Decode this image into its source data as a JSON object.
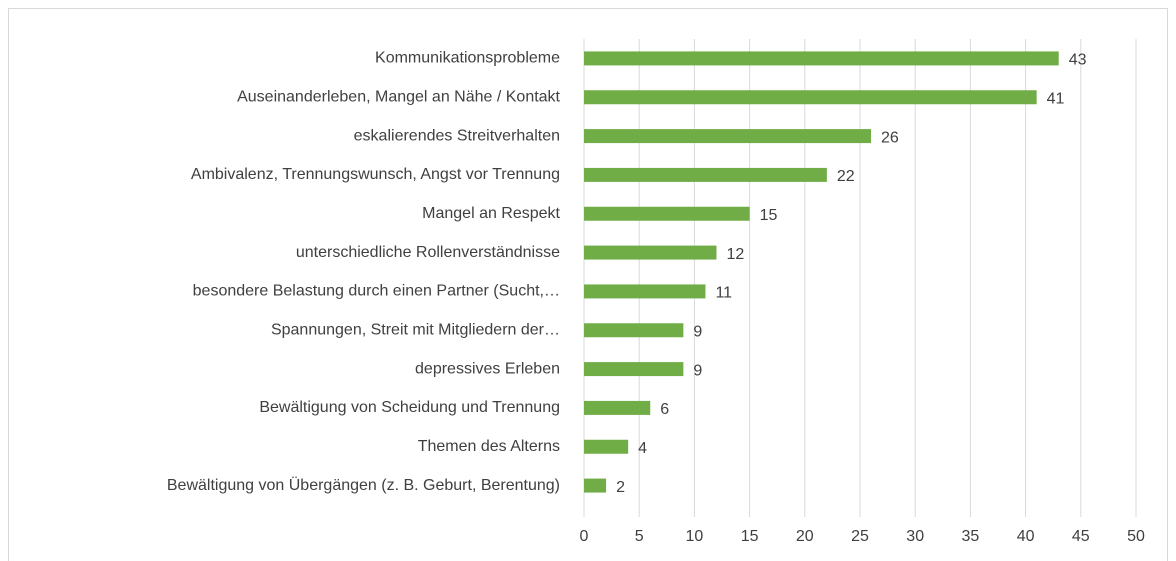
{
  "chart_data": {
    "type": "bar",
    "orientation": "horizontal",
    "categories": [
      "Kommunikationsprobleme",
      "Auseinanderleben, Mangel an Nähe / Kontakt",
      "eskalierendes Streitverhalten",
      "Ambivalenz, Trennungswunsch, Angst vor Trennung",
      "Mangel an Respekt",
      "unterschiedliche Rollenverständnisse",
      "besondere Belastung durch einen Partner (Sucht,…",
      "Spannungen, Streit mit Mitgliedern der…",
      "depressives Erleben",
      "Bewältigung von Scheidung und Trennung",
      "Themen des Alterns",
      "Bewältigung von Übergängen (z. B. Geburt, Berentung)"
    ],
    "values": [
      43,
      41,
      26,
      22,
      15,
      12,
      11,
      9,
      9,
      6,
      4,
      2
    ],
    "color": "#70ad47",
    "xlim": [
      0,
      50
    ],
    "xticks": [
      0,
      5,
      10,
      15,
      20,
      25,
      30,
      35,
      40,
      45,
      50
    ],
    "grid": true
  }
}
